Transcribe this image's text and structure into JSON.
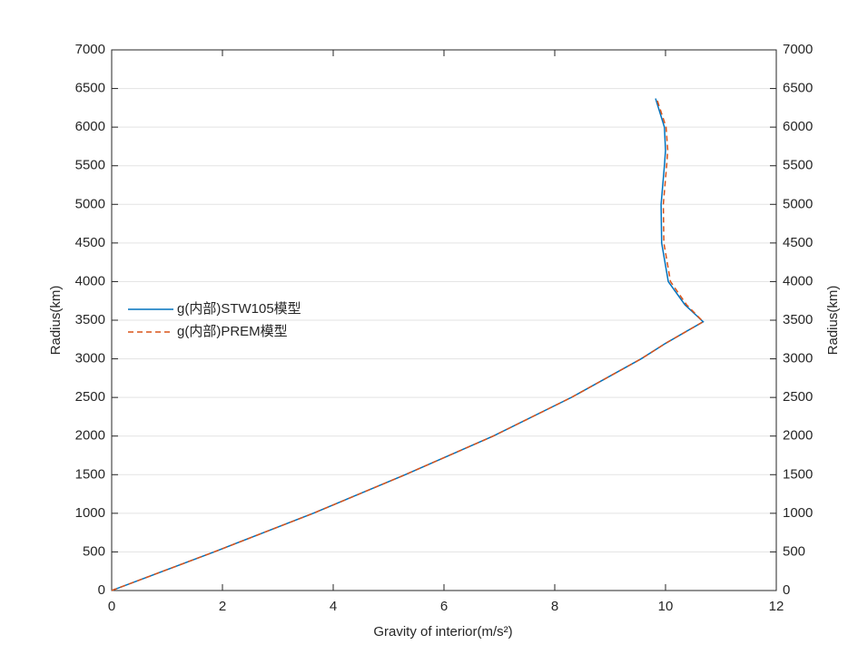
{
  "chart_data": {
    "type": "line",
    "xlabel": "Gravity of interior(m/s²)",
    "ylabel": "Radius(km)",
    "xlim": [
      0,
      12
    ],
    "xticks": [
      0,
      2,
      4,
      6,
      8,
      10,
      12
    ],
    "ylim": [
      0,
      7000
    ],
    "yticks": [
      0,
      500,
      1000,
      1500,
      2000,
      2500,
      3000,
      3500,
      4000,
      4500,
      5000,
      5500,
      6000,
      6500,
      7000
    ],
    "grid": "y",
    "legend": "left",
    "series": [
      {
        "name": "g(内部)STW105模型",
        "color": "#0072bd",
        "dash": false,
        "x": [
          0,
          1.85,
          3.64,
          5.3,
          6.89,
          8.3,
          9.56,
          10.0,
          10.68,
          10.35,
          10.05,
          9.93,
          9.92,
          9.98,
          10.0,
          9.98,
          9.82
        ],
        "values": [
          0,
          500,
          1000,
          1500,
          2000,
          2500,
          3000,
          3200,
          3480,
          3700,
          4000,
          4500,
          5000,
          5500,
          5700,
          6000,
          6371
        ]
      },
      {
        "name": "g(内部)PREM模型",
        "color": "#d95319",
        "dash": true,
        "x": [
          0,
          1.85,
          3.64,
          5.3,
          6.89,
          8.3,
          9.56,
          10.0,
          10.68,
          10.38,
          10.09,
          9.97,
          9.96,
          10.02,
          10.04,
          10.01,
          9.84
        ],
        "values": [
          0,
          500,
          1000,
          1500,
          2000,
          2500,
          3000,
          3200,
          3480,
          3700,
          4000,
          4500,
          5000,
          5500,
          5700,
          6000,
          6371
        ]
      }
    ]
  }
}
